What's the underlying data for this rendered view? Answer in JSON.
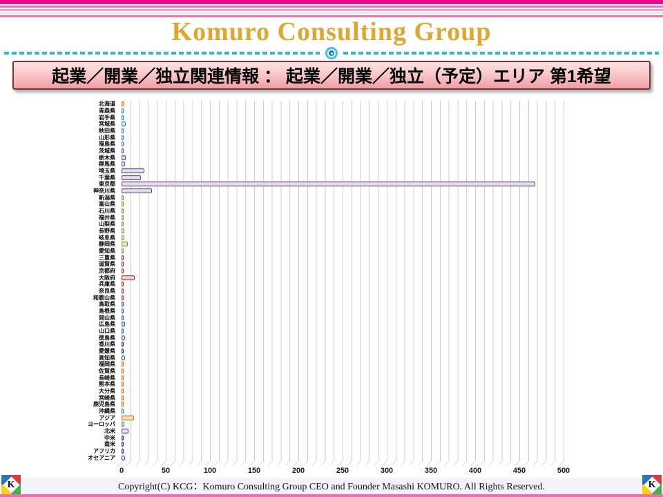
{
  "header": {
    "title": "Komuro Consulting Group"
  },
  "banner": {
    "text": "起業／開業／独立関連情報 ： 起業／開業／独立（予定）エリア 第1希望"
  },
  "chart_data": {
    "type": "bar",
    "orientation": "horizontal",
    "title": "起業／開業／独立（予定）エリア 第1希望",
    "xlabel": "",
    "ylabel": "",
    "xlim": [
      0,
      500
    ],
    "x_ticks": [
      0,
      50,
      100,
      150,
      200,
      250,
      300,
      350,
      400,
      450,
      500
    ],
    "gridline_interval": 10,
    "grid": true,
    "legend": false,
    "categories": [
      "北海道",
      "青森県",
      "岩手県",
      "宮城県",
      "秋田県",
      "山形県",
      "福島県",
      "茨城県",
      "栃木県",
      "群馬県",
      "埼玉県",
      "千葉県",
      "東京都",
      "神奈川県",
      "新潟県",
      "富山県",
      "石川県",
      "福井県",
      "山梨県",
      "長野県",
      "岐阜県",
      "静岡県",
      "愛知県",
      "三重県",
      "滋賀県",
      "京都府",
      "大阪府",
      "兵庫県",
      "奈良県",
      "和歌山県",
      "鳥取県",
      "島根県",
      "岡山県",
      "広島県",
      "山口県",
      "徳島県",
      "香川県",
      "愛媛県",
      "高知県",
      "福岡県",
      "佐賀県",
      "長崎県",
      "熊本県",
      "大分県",
      "宮崎県",
      "鹿児島県",
      "沖縄県",
      "アジア",
      "ヨーロッパ",
      "北米",
      "中米",
      "南米",
      "アフリカ",
      "オセアニア"
    ],
    "values": [
      3,
      1,
      2,
      5,
      1,
      1,
      2,
      1,
      5,
      4,
      26,
      22,
      468,
      34,
      2,
      1,
      1,
      1,
      2,
      3,
      3,
      7,
      2,
      1,
      1,
      2,
      15,
      2,
      1,
      1,
      1,
      1,
      2,
      4,
      1,
      0,
      1,
      1,
      0,
      2,
      1,
      2,
      1,
      1,
      2,
      2,
      2,
      14,
      3,
      8,
      1,
      1,
      1,
      0
    ],
    "color_groups": [
      "orange",
      "cyan",
      "cyan",
      "cyan",
      "cyan",
      "cyan",
      "cyan",
      "purple",
      "purple",
      "purple",
      "purple",
      "purple",
      "purple",
      "purple",
      "green",
      "green",
      "green",
      "green",
      "green",
      "green",
      "green",
      "green",
      "green",
      "red",
      "red",
      "red",
      "red",
      "red",
      "red",
      "red",
      "blue",
      "blue",
      "blue",
      "blue",
      "blue",
      "navy",
      "navy",
      "navy",
      "navy",
      "orange",
      "orange",
      "orange",
      "orange",
      "orange",
      "orange",
      "orange",
      "cyan",
      "orange",
      "cyan",
      "purple",
      "navy",
      "navy",
      "navy",
      "navy"
    ],
    "palette": {
      "orange": {
        "border": "#E46C0A",
        "fill": "#FAC090"
      },
      "cyan": {
        "border": "#31859C",
        "fill": "#A8D4E0"
      },
      "purple": {
        "border": "#604A7B",
        "fill": "#C7BCE0"
      },
      "green": {
        "border": "#76923C",
        "fill": "#C3D69B"
      },
      "red": {
        "border": "#953735",
        "fill": "#E6A5A3"
      },
      "blue": {
        "border": "#366092",
        "fill": "#95B3D7"
      },
      "navy": {
        "border": "#17365D",
        "fill": "#6E91C4"
      }
    }
  },
  "footer": {
    "copyright": "Copyright(C)  KCG：Komuro Consulting Group  CEO and Founder  Masashi KOMURO. All Rights Reserved.",
    "logo_letter": "K"
  },
  "colors": {
    "accent_pink": "#EC0A8C",
    "title_gold": "#DFA630",
    "divider_cyan": "#2BB4E8",
    "banner_border": "#803333"
  }
}
